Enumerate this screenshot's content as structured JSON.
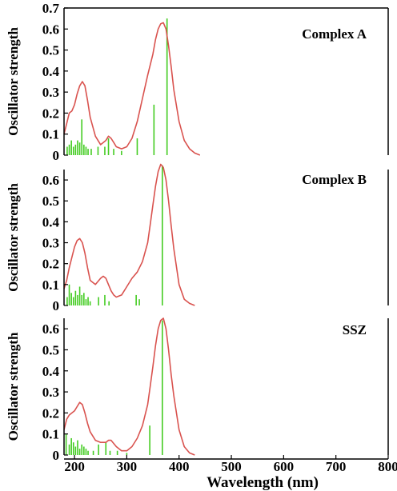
{
  "colors": {
    "curve": "#d9534f",
    "stick": "#44cc22",
    "frame": "#000000"
  },
  "chart_data": {
    "type": "line",
    "xlabel": "Wavelength (nm)",
    "xlim": [
      180,
      800
    ],
    "x_ticks": [
      "200",
      "300",
      "400",
      "500",
      "600",
      "700",
      "800"
    ],
    "x_tick_values": [
      200,
      300,
      400,
      500,
      600,
      700,
      800
    ],
    "panels": [
      {
        "title": "Complex A",
        "ylabel": "Oscillator strength",
        "ylim": [
          0,
          0.7
        ],
        "y_ticks": [
          "0",
          "0.1",
          "0.2",
          "0.3",
          "0.4",
          "0.5",
          "0.6",
          "0.7"
        ],
        "y_tick_values": [
          0,
          0.1,
          0.2,
          0.3,
          0.4,
          0.5,
          0.6,
          0.7
        ],
        "curve": {
          "x": [
            180,
            185,
            190,
            195,
            200,
            205,
            210,
            215,
            220,
            225,
            230,
            240,
            250,
            260,
            265,
            270,
            275,
            280,
            290,
            300,
            310,
            320,
            330,
            340,
            350,
            355,
            360,
            365,
            370,
            375,
            380,
            385,
            390,
            400,
            410,
            420,
            430,
            440
          ],
          "y": [
            0.1,
            0.15,
            0.2,
            0.21,
            0.24,
            0.29,
            0.33,
            0.35,
            0.33,
            0.26,
            0.18,
            0.09,
            0.05,
            0.07,
            0.09,
            0.08,
            0.06,
            0.04,
            0.03,
            0.04,
            0.08,
            0.16,
            0.27,
            0.38,
            0.48,
            0.55,
            0.6,
            0.625,
            0.63,
            0.6,
            0.52,
            0.42,
            0.31,
            0.16,
            0.07,
            0.03,
            0.01,
            0.0
          ]
        },
        "sticks": {
          "x": [
            186,
            190,
            194,
            198,
            202,
            206,
            210,
            214,
            218,
            222,
            226,
            232,
            245,
            258,
            265,
            275,
            290,
            320,
            352,
            377
          ],
          "y": [
            0.04,
            0.05,
            0.07,
            0.04,
            0.05,
            0.07,
            0.06,
            0.17,
            0.05,
            0.04,
            0.03,
            0.03,
            0.04,
            0.04,
            0.08,
            0.03,
            0.02,
            0.08,
            0.24,
            0.65
          ]
        }
      },
      {
        "title": "Complex B",
        "ylabel": "Oscillator strength",
        "ylim": [
          0,
          0.7
        ],
        "y_ticks": [
          "0",
          "0.1",
          "0.2",
          "0.3",
          "0.4",
          "0.5",
          "0.6"
        ],
        "y_tick_values": [
          0,
          0.1,
          0.2,
          0.3,
          0.4,
          0.5,
          0.6
        ],
        "curve": {
          "x": [
            180,
            185,
            190,
            195,
            200,
            205,
            210,
            215,
            220,
            225,
            230,
            240,
            250,
            255,
            260,
            265,
            270,
            275,
            280,
            290,
            300,
            310,
            320,
            330,
            340,
            345,
            350,
            355,
            360,
            365,
            370,
            375,
            380,
            385,
            390,
            400,
            410,
            420,
            430
          ],
          "y": [
            0.08,
            0.12,
            0.18,
            0.23,
            0.28,
            0.31,
            0.32,
            0.3,
            0.25,
            0.18,
            0.12,
            0.1,
            0.13,
            0.14,
            0.13,
            0.1,
            0.07,
            0.05,
            0.04,
            0.05,
            0.09,
            0.13,
            0.16,
            0.21,
            0.3,
            0.39,
            0.48,
            0.57,
            0.64,
            0.675,
            0.66,
            0.6,
            0.5,
            0.38,
            0.27,
            0.1,
            0.03,
            0.01,
            0.0
          ]
        },
        "sticks": {
          "x": [
            186,
            190,
            194,
            198,
            202,
            206,
            210,
            214,
            218,
            222,
            226,
            230,
            246,
            258,
            266,
            318,
            324,
            368
          ],
          "y": [
            0.04,
            0.1,
            0.06,
            0.04,
            0.07,
            0.05,
            0.09,
            0.05,
            0.06,
            0.03,
            0.04,
            0.02,
            0.04,
            0.05,
            0.02,
            0.05,
            0.03,
            0.67
          ]
        }
      },
      {
        "title": "SSZ",
        "ylabel": "Oscillator strength",
        "ylim": [
          0,
          0.7
        ],
        "y_ticks": [
          "0",
          "0.1",
          "0.2",
          "0.3",
          "0.4",
          "0.5",
          "0.6"
        ],
        "y_tick_values": [
          0,
          0.1,
          0.2,
          0.3,
          0.4,
          0.5,
          0.6
        ],
        "curve": {
          "x": [
            180,
            185,
            190,
            195,
            200,
            205,
            210,
            215,
            220,
            225,
            230,
            240,
            250,
            255,
            260,
            265,
            270,
            280,
            290,
            300,
            310,
            320,
            330,
            340,
            345,
            350,
            355,
            360,
            365,
            370,
            375,
            380,
            385,
            390,
            400,
            410,
            420,
            430
          ],
          "y": [
            0.12,
            0.17,
            0.19,
            0.2,
            0.21,
            0.23,
            0.25,
            0.24,
            0.2,
            0.15,
            0.11,
            0.07,
            0.06,
            0.06,
            0.06,
            0.07,
            0.07,
            0.04,
            0.02,
            0.02,
            0.04,
            0.08,
            0.14,
            0.24,
            0.33,
            0.42,
            0.52,
            0.6,
            0.64,
            0.65,
            0.6,
            0.5,
            0.38,
            0.28,
            0.12,
            0.04,
            0.01,
            0.0
          ]
        },
        "sticks": {
          "x": [
            184,
            190,
            194,
            198,
            202,
            206,
            210,
            214,
            218,
            222,
            226,
            236,
            246,
            260,
            268,
            282,
            300,
            344,
            368
          ],
          "y": [
            0.1,
            0.05,
            0.08,
            0.06,
            0.04,
            0.07,
            0.03,
            0.05,
            0.04,
            0.03,
            0.02,
            0.02,
            0.05,
            0.06,
            0.02,
            0.02,
            0.01,
            0.14,
            0.64
          ]
        }
      }
    ]
  }
}
